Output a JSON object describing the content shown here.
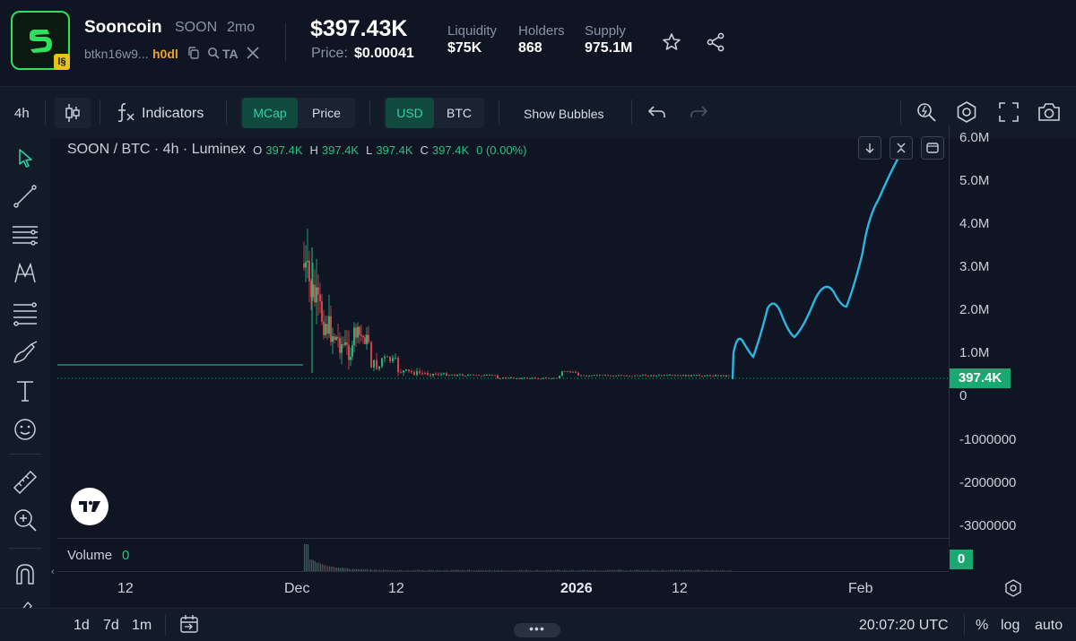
{
  "token": {
    "name": "Sooncoin",
    "symbol": "SOON",
    "age": "2mo",
    "address_prefix": "btkn16w9...",
    "address_suffix": "h0dl",
    "ta_label": "TA",
    "logo_badge": "l§",
    "market_cap": "$397.43K",
    "price_label": "Price:",
    "price_value": "$0.00041"
  },
  "stats": [
    {
      "label": "Liquidity",
      "value": "$75K"
    },
    {
      "label": "Holders",
      "value": "868"
    },
    {
      "label": "Supply",
      "value": "975.1M"
    }
  ],
  "toolbar": {
    "interval": "4h",
    "indicators": "Indicators",
    "mcap": "MCap",
    "price": "Price",
    "usd": "USD",
    "btc": "BTC",
    "show_bubbles": "Show Bubbles"
  },
  "legend": {
    "title": "SOON / BTC · 4h · Luminex",
    "o_label": "O",
    "o": "397.4K",
    "h_label": "H",
    "h": "397.4K",
    "l_label": "L",
    "l": "397.4K",
    "c_label": "C",
    "c": "397.4K",
    "change": "0 (0.00%)"
  },
  "y_axis": [
    "6.0M",
    "5.0M",
    "4.0M",
    "3.0M",
    "2.0M",
    "1.0M",
    "0",
    "-1000000",
    "-2000000",
    "-3000000"
  ],
  "last_price_label": "397.4K",
  "volume": {
    "label": "Volume",
    "value": "0",
    "badge": "0"
  },
  "x_axis": [
    {
      "label": "12",
      "bold": false
    },
    {
      "label": "Dec",
      "bold": false
    },
    {
      "label": "12",
      "bold": false
    },
    {
      "label": "2026",
      "bold": true
    },
    {
      "label": "12",
      "bold": false
    },
    {
      "label": "Feb",
      "bold": false
    }
  ],
  "footer": {
    "ranges": [
      "1d",
      "7d",
      "1m"
    ],
    "handle": "•••",
    "time": "20:07:20 UTC",
    "percent": "%",
    "log": "log",
    "auto": "auto"
  },
  "colors": {
    "up": "#26c281",
    "down": "#e5484d",
    "line": "#2cb5e0",
    "accent": "#1aa871"
  }
}
